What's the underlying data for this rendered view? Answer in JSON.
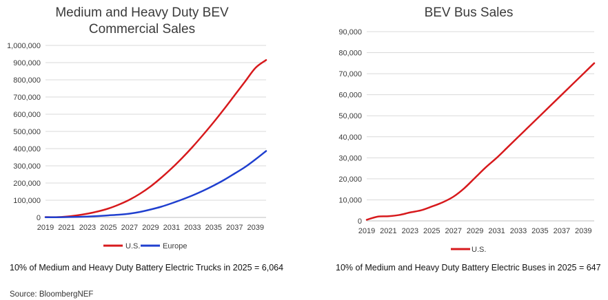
{
  "source_text": "Source: BloombergNEF",
  "chart_data": [
    {
      "type": "line",
      "title_lines": [
        "Medium and Heavy Duty BEV",
        "Commercial Sales"
      ],
      "x_tick_labels": [
        "2019",
        "2021",
        "2023",
        "2025",
        "2027",
        "2029",
        "2031",
        "2033",
        "2035",
        "2037",
        "2039"
      ],
      "y_tick_labels": [
        "0",
        "100,000",
        "200,000",
        "300,000",
        "400,000",
        "500,000",
        "600,000",
        "700,000",
        "800,000",
        "900,000",
        "1,000,000"
      ],
      "ylim": [
        0,
        1000000
      ],
      "xlim": [
        2019,
        2040
      ],
      "x": [
        2019,
        2020,
        2021,
        2022,
        2023,
        2024,
        2025,
        2026,
        2027,
        2028,
        2029,
        2030,
        2031,
        2032,
        2033,
        2034,
        2035,
        2036,
        2037,
        2038,
        2039,
        2040
      ],
      "series": [
        {
          "name": "U.S.",
          "color": "#d7191c",
          "values": [
            2000,
            1500,
            5000,
            12000,
            22000,
            35000,
            52000,
            75000,
            103000,
            138000,
            180000,
            230000,
            285000,
            345000,
            410000,
            480000,
            553000,
            630000,
            710000,
            790000,
            870000,
            915000
          ]
        },
        {
          "name": "Europe",
          "color": "#1f3fcf",
          "values": [
            1000,
            1000,
            2000,
            3000,
            5000,
            8000,
            12000,
            16000,
            22000,
            32000,
            46000,
            62000,
            82000,
            104000,
            128000,
            155000,
            185000,
            218000,
            255000,
            293000,
            338000,
            386000
          ]
        }
      ],
      "legend": [
        {
          "label": "U.S.",
          "color": "#d7191c"
        },
        {
          "label": "Europe",
          "color": "#1f3fcf"
        }
      ],
      "legend_position": "bottom",
      "footnote": "10% of Medium and Heavy Duty Battery Electric Trucks in 2025 = 6,064"
    },
    {
      "type": "line",
      "title_lines": [
        "BEV Bus Sales"
      ],
      "x_tick_labels": [
        "2019",
        "2021",
        "2023",
        "2025",
        "2027",
        "2029",
        "2031",
        "2033",
        "2035",
        "2037",
        "2039"
      ],
      "y_tick_labels": [
        "0",
        "10,000",
        "20,000",
        "30,000",
        "40,000",
        "50,000",
        "60,000",
        "70,000",
        "80,000",
        "90,000"
      ],
      "ylim": [
        0,
        90000
      ],
      "xlim": [
        2019,
        2040
      ],
      "x": [
        2019,
        2020,
        2021,
        2022,
        2023,
        2024,
        2025,
        2026,
        2027,
        2028,
        2029,
        2030,
        2031,
        2032,
        2033,
        2034,
        2035,
        2036,
        2037,
        2038,
        2039,
        2040
      ],
      "series": [
        {
          "name": "U.S.",
          "color": "#d7191c",
          "values": [
            500,
            2000,
            2200,
            2800,
            4000,
            5000,
            6800,
            8800,
            11500,
            15500,
            20500,
            25500,
            30000,
            35000,
            40000,
            45000,
            50000,
            55000,
            60000,
            65000,
            70000,
            75000
          ]
        }
      ],
      "legend": [
        {
          "label": "U.S.",
          "color": "#d7191c"
        }
      ],
      "legend_position": "bottom",
      "footnote": "10% of Medium and Heavy Duty Battery Electric Buses in 2025 = 647"
    }
  ]
}
